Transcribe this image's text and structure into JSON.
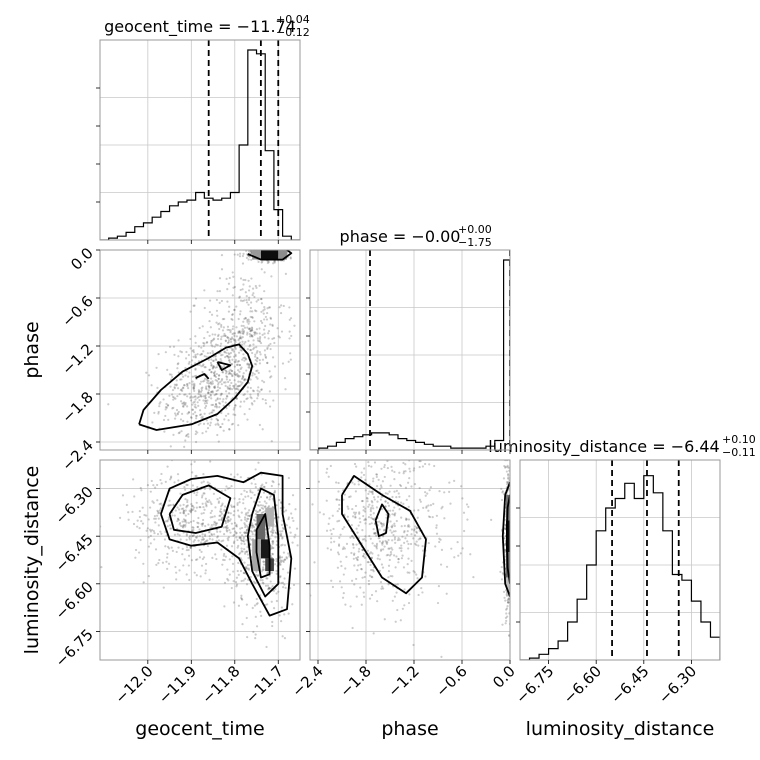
{
  "chart_data": {
    "type": "corner",
    "parameters": [
      "geocent_time",
      "phase",
      "luminosity_distance"
    ],
    "axis_labels": {
      "geocent_time": "geocent_time",
      "phase": "phase",
      "luminosity_distance": "luminosity_distance"
    },
    "titles": [
      {
        "param": "geocent_time",
        "prefix": "geocent_time = ",
        "median": "−11.74",
        "plus": "+0.04",
        "minus": "−0.12"
      },
      {
        "param": "phase",
        "prefix": "phase = ",
        "median": "−0.00",
        "plus": "+0.00",
        "minus": "−1.75"
      },
      {
        "param": "luminosity_distance",
        "prefix": "luminosity_distance = ",
        "median": "−6.44",
        "plus": "+0.10",
        "minus": "−0.11"
      }
    ],
    "ranges": {
      "geocent_time": [
        -12.11,
        -11.65
      ],
      "phase": [
        -2.5,
        0.0
      ],
      "luminosity_distance": [
        -6.84,
        -6.21
      ]
    },
    "ticks": {
      "geocent_time": [
        {
          "v": -12.0,
          "label": "−12.0"
        },
        {
          "v": -11.9,
          "label": "−11.9"
        },
        {
          "v": -11.8,
          "label": "−11.8"
        },
        {
          "v": -11.7,
          "label": "−11.7"
        }
      ],
      "phase": [
        {
          "v": -2.4,
          "label": "−2.4"
        },
        {
          "v": -1.8,
          "label": "−1.8"
        },
        {
          "v": -1.2,
          "label": "−1.2"
        },
        {
          "v": -0.6,
          "label": "−0.6"
        },
        {
          "v": 0.0,
          "label": "0.0"
        }
      ],
      "luminosity_distance": [
        {
          "v": -6.75,
          "label": "−6.75"
        },
        {
          "v": -6.6,
          "label": "−6.60"
        },
        {
          "v": -6.45,
          "label": "−6.45"
        },
        {
          "v": -6.3,
          "label": "−6.30"
        }
      ]
    },
    "quantiles": {
      "geocent_time": [
        -11.86,
        -11.74,
        -11.7
      ],
      "phase": [
        -1.75,
        0.0
      ],
      "luminosity_distance": [
        -6.55,
        -6.44,
        -6.34
      ]
    },
    "histograms": {
      "geocent_time": {
        "edges": [
          -12.11,
          -12.09,
          -12.07,
          -12.05,
          -12.03,
          -12.01,
          -11.99,
          -11.97,
          -11.95,
          -11.93,
          -11.91,
          -11.89,
          -11.87,
          -11.85,
          -11.83,
          -11.81,
          -11.79,
          -11.77,
          -11.75,
          -11.73,
          -11.71,
          -11.69,
          -11.67,
          -11.65
        ],
        "counts": [
          0,
          0.01,
          0.02,
          0.04,
          0.07,
          0.09,
          0.12,
          0.15,
          0.18,
          0.2,
          0.21,
          0.25,
          0.22,
          0.21,
          0.22,
          0.25,
          0.5,
          1.0,
          0.98,
          0.47,
          0.16,
          0.02,
          0
        ]
      },
      "phase": {
        "edges": [
          -2.5,
          -2.39,
          -2.28,
          -2.17,
          -2.06,
          -1.95,
          -1.84,
          -1.73,
          -1.62,
          -1.51,
          -1.4,
          -1.29,
          -1.18,
          -1.07,
          -0.96,
          -0.85,
          -0.74,
          -0.63,
          -0.52,
          -0.41,
          -0.3,
          -0.19,
          -0.08,
          0.0
        ],
        "counts": [
          0,
          0.01,
          0.02,
          0.04,
          0.06,
          0.07,
          0.08,
          0.09,
          0.09,
          0.08,
          0.06,
          0.05,
          0.04,
          0.03,
          0.02,
          0.02,
          0.01,
          0.01,
          0.01,
          0.01,
          0.02,
          0.05,
          1.0
        ]
      },
      "luminosity_distance": {
        "edges": [
          -6.84,
          -6.81,
          -6.78,
          -6.75,
          -6.72,
          -6.69,
          -6.66,
          -6.63,
          -6.6,
          -6.57,
          -6.54,
          -6.51,
          -6.48,
          -6.45,
          -6.42,
          -6.39,
          -6.36,
          -6.33,
          -6.3,
          -6.27,
          -6.24,
          -6.21
        ],
        "counts": [
          0,
          0.01,
          0.03,
          0.06,
          0.1,
          0.2,
          0.32,
          0.5,
          0.68,
          0.8,
          0.85,
          0.93,
          0.85,
          0.97,
          0.88,
          0.68,
          0.45,
          0.42,
          0.31,
          0.2,
          0.12
        ]
      }
    },
    "scatter_clusters": {
      "phase_vs_geocent_time": [
        {
          "cx": -11.85,
          "cy": -1.65,
          "sx": 0.07,
          "sy": 0.35,
          "n": 650,
          "rot": 0.55
        },
        {
          "cx": -11.78,
          "cy": -1.1,
          "sx": 0.05,
          "sy": 0.45,
          "n": 350,
          "rot": 0.3
        },
        {
          "cx": -11.72,
          "cy": -0.05,
          "sx": 0.03,
          "sy": 0.05,
          "n": 220,
          "rot": 0.0
        }
      ],
      "luminosity_distance_vs_geocent_time": [
        {
          "cx": -11.87,
          "cy": -6.4,
          "sx": 0.08,
          "sy": 0.08,
          "n": 600,
          "rot": 0.0
        },
        {
          "cx": -11.73,
          "cy": -6.48,
          "sx": 0.035,
          "sy": 0.11,
          "n": 500,
          "rot": 0.0
        }
      ],
      "luminosity_distance_vs_phase": [
        {
          "cx": -1.6,
          "cy": -6.42,
          "sx": 0.45,
          "sy": 0.12,
          "n": 650,
          "rot": 0.0
        },
        {
          "cx": -0.02,
          "cy": -6.45,
          "sx": 0.03,
          "sy": 0.12,
          "n": 350,
          "rot": 0.0
        }
      ]
    },
    "contours": {
      "phase_vs_geocent_time": [
        [
          [
            -12.02,
            -2.18
          ],
          [
            -11.98,
            -2.25
          ],
          [
            -11.9,
            -2.18
          ],
          [
            -11.84,
            -2.05
          ],
          [
            -11.8,
            -1.85
          ],
          [
            -11.77,
            -1.65
          ],
          [
            -11.76,
            -1.45
          ],
          [
            -11.77,
            -1.3
          ],
          [
            -11.79,
            -1.18
          ],
          [
            -11.82,
            -1.22
          ],
          [
            -11.86,
            -1.35
          ],
          [
            -11.92,
            -1.52
          ],
          [
            -11.97,
            -1.75
          ],
          [
            -12.01,
            -2.0
          ],
          [
            -12.02,
            -2.18
          ]
        ],
        [
          [
            -11.89,
            -1.6
          ],
          [
            -11.87,
            -1.55
          ],
          [
            -11.86,
            -1.61
          ]
        ],
        [
          [
            -11.84,
            -1.4
          ],
          [
            -11.81,
            -1.44
          ],
          [
            -11.83,
            -1.5
          ],
          [
            -11.84,
            -1.4
          ]
        ],
        [
          [
            -11.77,
            -0.05
          ],
          [
            -11.74,
            -0.12
          ],
          [
            -11.69,
            -0.12
          ],
          [
            -11.67,
            -0.04
          ],
          [
            -11.68,
            0.0
          ]
        ]
      ],
      "luminosity_distance_vs_geocent_time": [
        [
          [
            -11.97,
            -6.38
          ],
          [
            -11.95,
            -6.3
          ],
          [
            -11.9,
            -6.27
          ],
          [
            -11.84,
            -6.26
          ],
          [
            -11.78,
            -6.28
          ],
          [
            -11.74,
            -6.25
          ],
          [
            -11.69,
            -6.26
          ],
          [
            -11.69,
            -6.38
          ],
          [
            -11.67,
            -6.52
          ],
          [
            -11.68,
            -6.68
          ],
          [
            -11.72,
            -6.7
          ],
          [
            -11.76,
            -6.6
          ],
          [
            -11.79,
            -6.52
          ],
          [
            -11.84,
            -6.47
          ],
          [
            -11.9,
            -6.48
          ],
          [
            -11.95,
            -6.46
          ],
          [
            -11.97,
            -6.38
          ]
        ],
        [
          [
            -11.95,
            -6.38
          ],
          [
            -11.92,
            -6.32
          ],
          [
            -11.86,
            -6.29
          ],
          [
            -11.81,
            -6.33
          ],
          [
            -11.83,
            -6.42
          ],
          [
            -11.89,
            -6.44
          ],
          [
            -11.94,
            -6.43
          ],
          [
            -11.95,
            -6.38
          ]
        ],
        [
          [
            -11.76,
            -6.38
          ],
          [
            -11.74,
            -6.3
          ],
          [
            -11.71,
            -6.32
          ],
          [
            -11.7,
            -6.45
          ],
          [
            -11.7,
            -6.6
          ],
          [
            -11.73,
            -6.64
          ],
          [
            -11.76,
            -6.56
          ],
          [
            -11.77,
            -6.45
          ],
          [
            -11.76,
            -6.38
          ]
        ],
        [
          [
            -11.75,
            -6.43
          ],
          [
            -11.73,
            -6.38
          ],
          [
            -11.72,
            -6.48
          ],
          [
            -11.72,
            -6.57
          ],
          [
            -11.74,
            -6.58
          ],
          [
            -11.75,
            -6.5
          ],
          [
            -11.75,
            -6.43
          ]
        ]
      ],
      "luminosity_distance_vs_phase": [
        [
          [
            -2.1,
            -6.32
          ],
          [
            -1.95,
            -6.26
          ],
          [
            -1.6,
            -6.32
          ],
          [
            -1.25,
            -6.37
          ],
          [
            -1.05,
            -6.46
          ],
          [
            -1.1,
            -6.58
          ],
          [
            -1.3,
            -6.63
          ],
          [
            -1.6,
            -6.58
          ],
          [
            -1.9,
            -6.46
          ],
          [
            -2.1,
            -6.38
          ],
          [
            -2.1,
            -6.32
          ]
        ],
        [
          [
            -1.68,
            -6.4
          ],
          [
            -1.6,
            -6.35
          ],
          [
            -1.52,
            -6.38
          ],
          [
            -1.55,
            -6.44
          ],
          [
            -1.64,
            -6.45
          ],
          [
            -1.68,
            -6.4
          ]
        ],
        [
          [
            0.0,
            -6.28
          ],
          [
            -0.06,
            -6.32
          ],
          [
            -0.09,
            -6.45
          ],
          [
            -0.06,
            -6.6
          ],
          [
            0.0,
            -6.64
          ]
        ],
        [
          [
            0.0,
            -6.32
          ],
          [
            -0.03,
            -6.36
          ],
          [
            -0.04,
            -6.45
          ],
          [
            -0.03,
            -6.55
          ],
          [
            0.0,
            -6.6
          ]
        ]
      ]
    },
    "density_cells": {
      "phase_vs_geocent_time": [
        {
          "x": [
            -11.74,
            -11.7
          ],
          "y": [
            -0.12,
            0.0
          ],
          "shade": 0.95
        },
        {
          "x": [
            -11.7,
            -11.68
          ],
          "y": [
            -0.12,
            0.0
          ],
          "shade": 0.45
        },
        {
          "x": [
            -11.76,
            -11.74
          ],
          "y": [
            -0.12,
            0.0
          ],
          "shade": 0.4
        }
      ],
      "luminosity_distance_vs_geocent_time": [
        {
          "x": [
            -11.75,
            -11.73
          ],
          "y": [
            -6.46,
            -6.38
          ],
          "shade": 0.6
        },
        {
          "x": [
            -11.74,
            -11.72
          ],
          "y": [
            -6.52,
            -6.46
          ],
          "shade": 0.9
        },
        {
          "x": [
            -11.73,
            -11.71
          ],
          "y": [
            -6.56,
            -6.52
          ],
          "shade": 0.75
        },
        {
          "x": [
            -11.76,
            -11.74
          ],
          "y": [
            -6.56,
            -6.46
          ],
          "shade": 0.35
        },
        {
          "x": [
            -11.73,
            -11.71
          ],
          "y": [
            -6.42,
            -6.36
          ],
          "shade": 0.3
        }
      ],
      "luminosity_distance_vs_phase": [
        {
          "x": [
            -0.05,
            0.0
          ],
          "y": [
            -6.5,
            -6.4
          ],
          "shade": 0.95
        },
        {
          "x": [
            -0.05,
            0.0
          ],
          "y": [
            -6.4,
            -6.32
          ],
          "shade": 0.55
        },
        {
          "x": [
            -0.05,
            0.0
          ],
          "y": [
            -6.58,
            -6.5
          ],
          "shade": 0.6
        },
        {
          "x": [
            -0.05,
            0.0
          ],
          "y": [
            -6.64,
            -6.58
          ],
          "shade": 0.25
        }
      ]
    },
    "grid": true
  }
}
